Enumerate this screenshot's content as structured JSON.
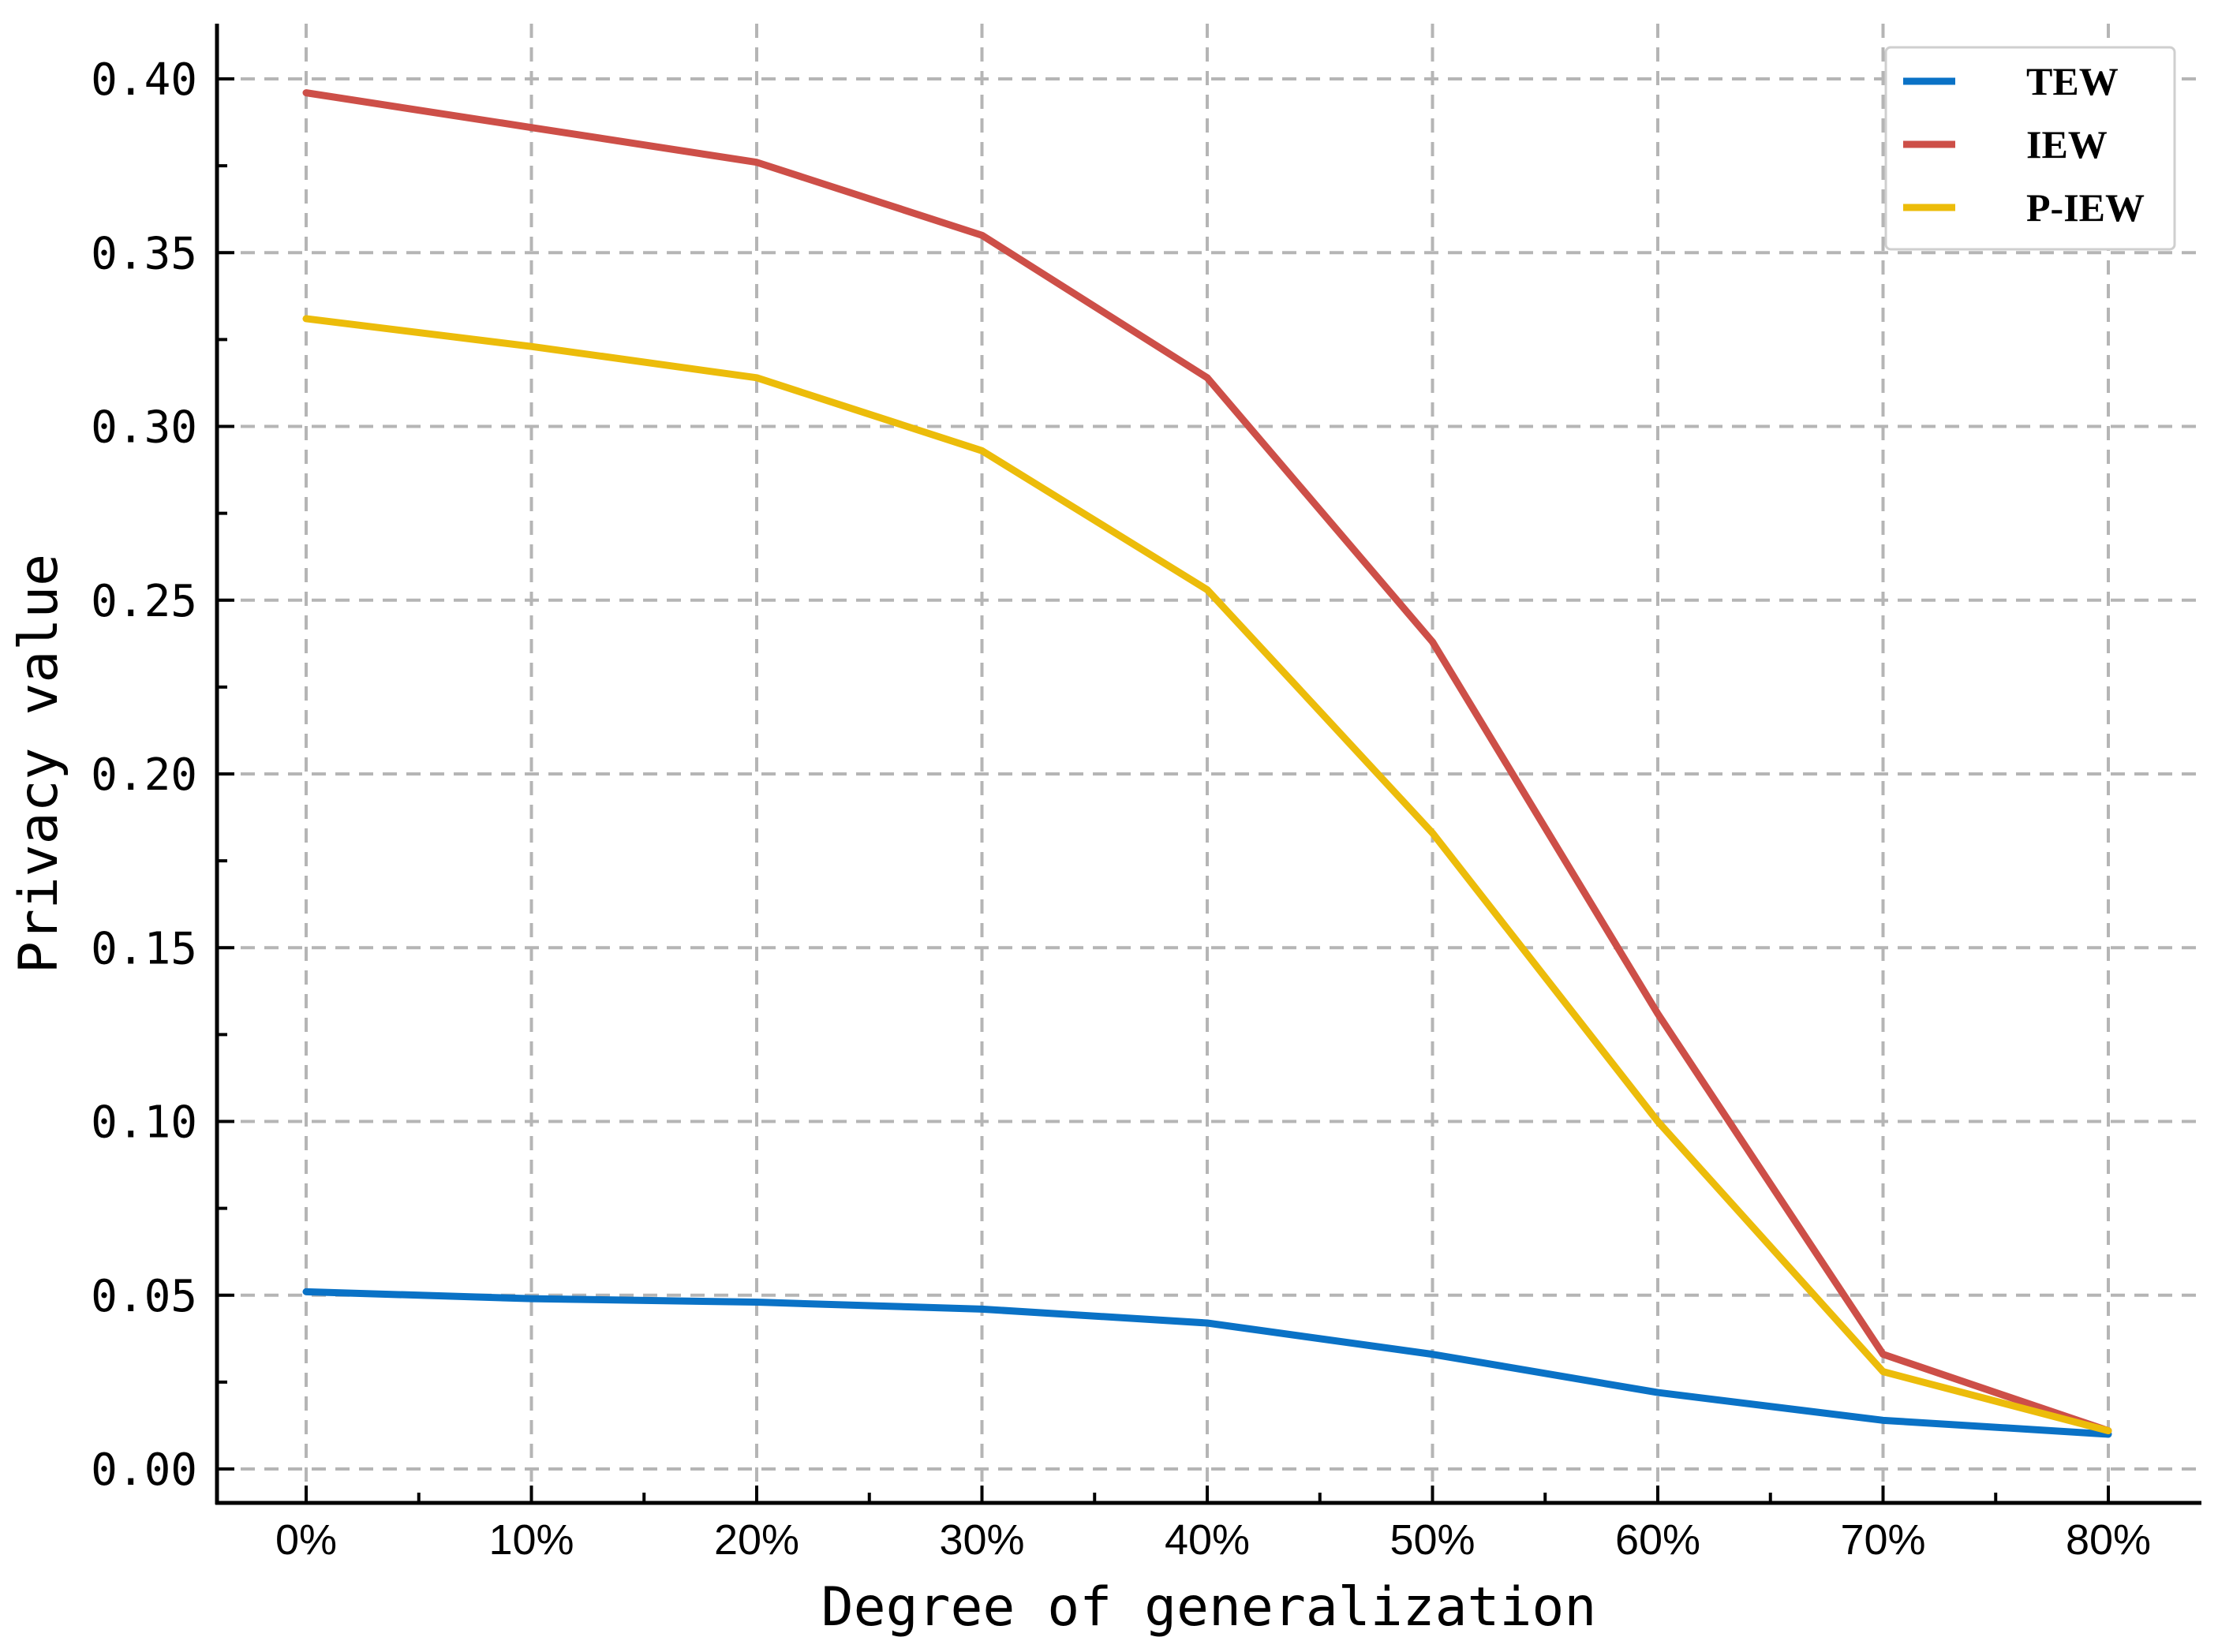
{
  "chart_data": {
    "type": "line",
    "title": "",
    "xlabel": "Degree of generalization",
    "ylabel": "Privacy value",
    "categories": [
      "0%",
      "10%",
      "20%",
      "30%",
      "40%",
      "50%",
      "60%",
      "70%",
      "80%"
    ],
    "ylim": [
      0.0,
      0.4
    ],
    "yticks": [
      "0.00",
      "0.05",
      "0.10",
      "0.15",
      "0.20",
      "0.25",
      "0.30",
      "0.35",
      "0.40"
    ],
    "grid": true,
    "legend_position": "top-right",
    "series": [
      {
        "name": "TEW",
        "color": "#0a72c6",
        "values": [
          0.051,
          0.049,
          0.048,
          0.046,
          0.042,
          0.033,
          0.022,
          0.014,
          0.01
        ]
      },
      {
        "name": "IEW",
        "color": "#cd4f48",
        "values": [
          0.396,
          0.386,
          0.376,
          0.355,
          0.314,
          0.238,
          0.131,
          0.033,
          0.011
        ]
      },
      {
        "name": "P-IEW",
        "color": "#ecbc0a",
        "values": [
          0.331,
          0.323,
          0.314,
          0.293,
          0.253,
          0.183,
          0.1,
          0.028,
          0.011
        ]
      }
    ]
  }
}
